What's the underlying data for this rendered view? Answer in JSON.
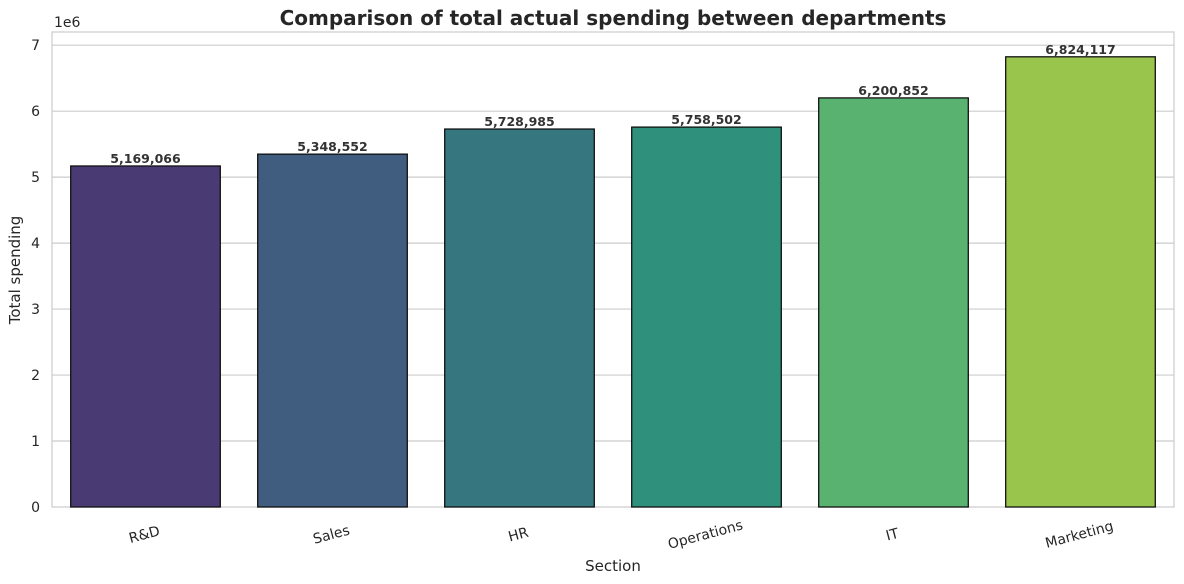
{
  "chart_data": {
    "type": "bar",
    "title": "Comparison of total actual spending between departments",
    "xlabel": "Section",
    "ylabel": "Total spending",
    "y_offset_label": "1e6",
    "y_scale": 1000000,
    "categories": [
      "R&D",
      "Sales",
      "HR",
      "Operations",
      "IT",
      "Marketing"
    ],
    "values": [
      5169066,
      5348552,
      5728985,
      5758502,
      6200852,
      6824117
    ],
    "data_labels": [
      "5,169,066",
      "5,348,552",
      "5,728,985",
      "5,758,502",
      "6,200,852",
      "6,824,117"
    ],
    "bar_colors": [
      "#4a3a73",
      "#405d80",
      "#35767f",
      "#2f907c",
      "#59b270",
      "#9ac54c"
    ],
    "ylim": [
      0,
      7.2
    ],
    "yticks": [
      0,
      1,
      2,
      3,
      4,
      5,
      6,
      7
    ],
    "ytick_labels": [
      "0",
      "1",
      "2",
      "3",
      "4",
      "5",
      "6",
      "7"
    ],
    "grid": "horizontal",
    "xtick_rotation_deg": 15
  }
}
